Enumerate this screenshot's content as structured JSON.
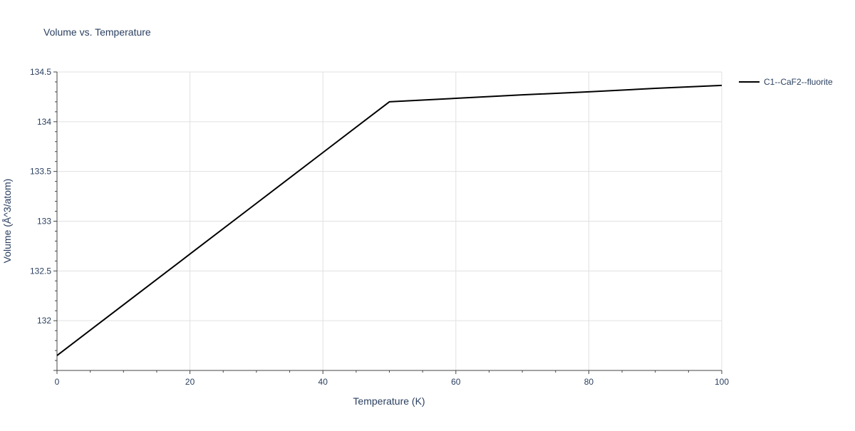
{
  "chart_data": {
    "type": "line",
    "title": "Volume vs. Temperature",
    "xlabel": "Temperature (K)",
    "ylabel": "Volume (Å^3/atom)",
    "xlim": [
      0,
      100
    ],
    "ylim": [
      131.5,
      134.5
    ],
    "x_ticks": [
      0,
      20,
      40,
      60,
      80,
      100
    ],
    "x_tick_labels": [
      "0",
      "20",
      "40",
      "60",
      "80",
      "100"
    ],
    "y_ticks": [
      132,
      132.5,
      133,
      133.5,
      134,
      134.5
    ],
    "y_tick_labels": [
      "132",
      "132.5",
      "133",
      "133.5",
      "134",
      "134.5"
    ],
    "grid": true,
    "legend_position": "top-right",
    "series": [
      {
        "name": "C1--CaF2--fluorite",
        "color": "#000000",
        "x": [
          0,
          10,
          20,
          30,
          40,
          50,
          60,
          70,
          80,
          90,
          100
        ],
        "y": [
          131.65,
          132.16,
          132.67,
          133.18,
          133.69,
          134.2,
          134.235,
          134.27,
          134.3,
          134.335,
          134.365
        ]
      }
    ]
  },
  "colors": {
    "text": "#2a3f5f",
    "grid": "#e0e0e0",
    "axis": "#444444",
    "background": "#ffffff"
  }
}
